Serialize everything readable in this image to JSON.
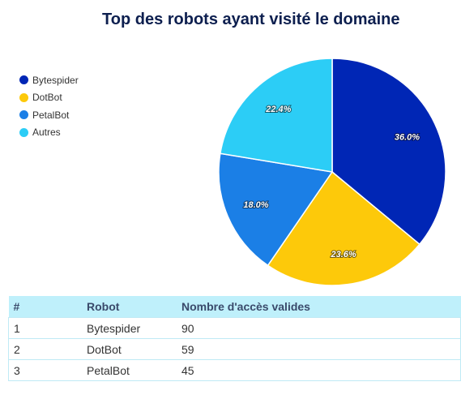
{
  "chart_data": {
    "type": "pie",
    "title": "Top des robots ayant visité le domaine",
    "legend_position": "left",
    "slices": [
      {
        "label": "Bytespider",
        "value": 36.0,
        "display": "36.0%",
        "color": "#0026b5"
      },
      {
        "label": "DotBot",
        "value": 23.6,
        "display": "23.6%",
        "color": "#fdc90a"
      },
      {
        "label": "PetalBot",
        "value": 18.0,
        "display": "18.0%",
        "color": "#1b7fe6"
      },
      {
        "label": "Autres",
        "value": 22.4,
        "display": "22.4%",
        "color": "#2ccdf6"
      }
    ]
  },
  "table": {
    "headers": [
      "#",
      "Robot",
      "Nombre d'accès valides"
    ],
    "rows": [
      [
        "1",
        "Bytespider",
        "90"
      ],
      [
        "2",
        "DotBot",
        "59"
      ],
      [
        "3",
        "PetalBot",
        "45"
      ]
    ]
  }
}
